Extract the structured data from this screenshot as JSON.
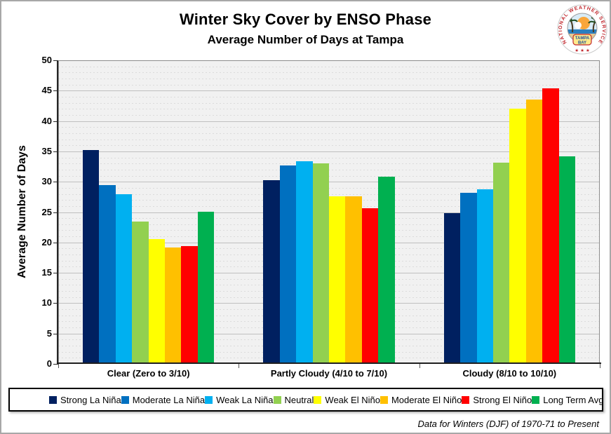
{
  "title": "Winter Sky Cover by ENSO Phase",
  "subtitle": "Average Number of Days at Tampa",
  "footer": "Data for Winters (DJF) of 1970-71 to Present",
  "logo": {
    "arc_text": "NATIONAL WEATHER SERVICE",
    "stars": "★ ★ ★",
    "banner_line1": "TAMPA",
    "banner_line2": "BAY"
  },
  "chart_data": {
    "type": "bar",
    "title": "Winter Sky Cover by ENSO Phase",
    "subtitle": "Average Number of Days at Tampa",
    "xlabel": "",
    "ylabel": "Average Number of Days",
    "ylim": [
      0,
      50
    ],
    "ytick_step": 5,
    "minor_tick_step": 1,
    "grid": true,
    "legend_position": "bottom",
    "plot_bg_color": "#F1F1F1",
    "categories": [
      "Clear (Zero to 3/10)",
      "Partly Cloudy (4/10 to 7/10)",
      "Cloudy (8/10 to 10/10)"
    ],
    "series": [
      {
        "name": "Strong La Niña",
        "color": "#002060",
        "values": [
          35.2,
          30.3,
          24.8
        ]
      },
      {
        "name": "Moderate La Niña",
        "color": "#0070C0",
        "values": [
          29.5,
          32.7,
          28.2
        ]
      },
      {
        "name": "Weak La Niña",
        "color": "#00B0F0",
        "values": [
          27.9,
          33.4,
          28.7
        ]
      },
      {
        "name": "Neutral",
        "color": "#92D050",
        "values": [
          23.5,
          33.0,
          33.2
        ]
      },
      {
        "name": "Weak El Niño",
        "color": "#FFFF00",
        "values": [
          20.5,
          27.6,
          42.0
        ]
      },
      {
        "name": "Moderate El Niño",
        "color": "#FFC000",
        "values": [
          19.2,
          27.6,
          43.5
        ]
      },
      {
        "name": "Strong El Niño",
        "color": "#FF0000",
        "values": [
          19.4,
          25.6,
          45.4
        ]
      },
      {
        "name": "Long Term Avg",
        "color": "#00B050",
        "values": [
          25.1,
          30.8,
          34.2
        ]
      }
    ]
  }
}
